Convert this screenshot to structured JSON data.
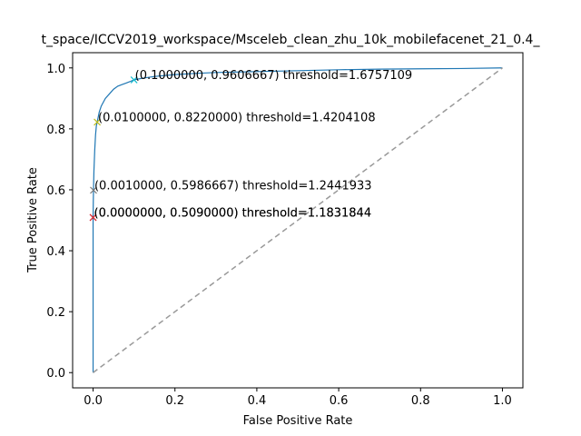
{
  "chart_data": {
    "type": "line",
    "title": "t_space/ICCV2019_workspace/Msceleb_clean_zhu_10k_mobilefacenet_21_0.4_",
    "xlabel": "False Positive Rate",
    "ylabel": "True Positive Rate",
    "xlim": [
      -0.05,
      1.05
    ],
    "ylim": [
      -0.05,
      1.05
    ],
    "xticks": [
      0.0,
      0.2,
      0.4,
      0.6,
      0.8,
      1.0
    ],
    "yticks": [
      0.0,
      0.2,
      0.4,
      0.6,
      0.8,
      1.0
    ],
    "xtick_labels": [
      "0.0",
      "0.2",
      "0.4",
      "0.6",
      "0.8",
      "1.0"
    ],
    "ytick_labels": [
      "0.0",
      "0.2",
      "0.4",
      "0.6",
      "0.8",
      "1.0"
    ],
    "grid": false,
    "colors": {
      "roc": "#1f77b4",
      "diagonal": "#999999",
      "markers": [
        "#e377c2",
        "#d62728",
        "#7f7f7f",
        "#bcbd22",
        "#17becf"
      ]
    },
    "series": [
      {
        "style": "roc",
        "x": [
          0,
          0,
          0.0005,
          0.001,
          0.002,
          0.004,
          0.006,
          0.008,
          0.01,
          0.015,
          0.02,
          0.03,
          0.04,
          0.05,
          0.06,
          0.07,
          0.08,
          0.09,
          0.1,
          0.12,
          0.15,
          0.2,
          0.25,
          0.3,
          0.4,
          0.5,
          0.6,
          0.7,
          0.8,
          0.9,
          1.0
        ],
        "y": [
          0,
          0.509,
          0.56,
          0.599,
          0.66,
          0.73,
          0.78,
          0.81,
          0.822,
          0.855,
          0.875,
          0.9,
          0.915,
          0.93,
          0.94,
          0.945,
          0.95,
          0.955,
          0.961,
          0.966,
          0.972,
          0.978,
          0.982,
          0.985,
          0.988,
          0.991,
          0.994,
          0.996,
          0.997,
          0.998,
          1.0
        ]
      },
      {
        "style": "diagonal",
        "x": [
          0,
          1
        ],
        "y": [
          0,
          1
        ]
      }
    ],
    "markers": [
      {
        "x": 0.0,
        "y": 0.509,
        "label": "(0.0000000, 0.5090000) threshold=1.1831844"
      },
      {
        "x": 0.0,
        "y": 0.509,
        "label": "(0.0000000, 0.5090000) threshold=1.1831844"
      },
      {
        "x": 0.001,
        "y": 0.5986667,
        "label": "(0.0010000, 0.5986667) threshold=1.2441933"
      },
      {
        "x": 0.01,
        "y": 0.822,
        "label": "(0.0100000, 0.8220000) threshold=1.4204108"
      },
      {
        "x": 0.1,
        "y": 0.9606667,
        "label": "(0.1000000, 0.9606667) threshold=1.6757109"
      }
    ]
  }
}
